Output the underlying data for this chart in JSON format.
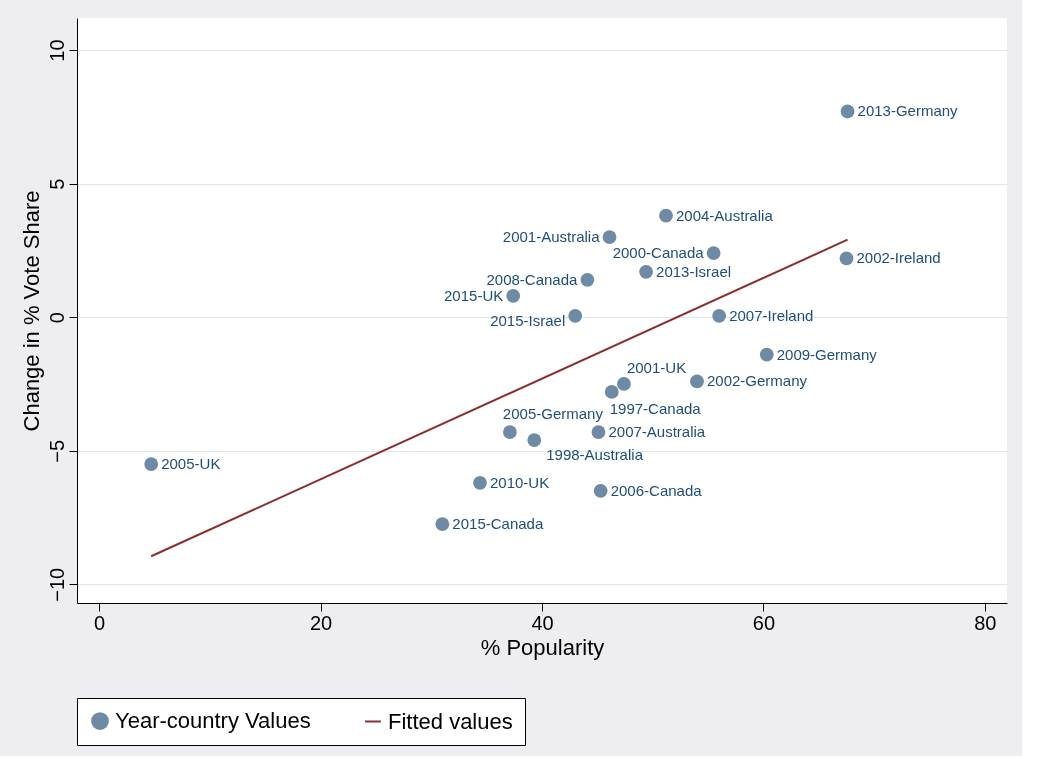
{
  "chart_data": {
    "type": "scatter",
    "xlabel": "% Popularity",
    "ylabel": "Change in % Vote Share",
    "xlim": [
      -2,
      82
    ],
    "ylim": [
      -10.7,
      11.2
    ],
    "xticks": [
      0,
      20,
      40,
      60,
      80
    ],
    "yticks": [
      -10,
      -5,
      0,
      5,
      10
    ],
    "grid": "y",
    "legend": "bottom",
    "series": [
      {
        "name": "Year-country Values",
        "color": "#6e8aa4",
        "marker": "circle",
        "x": [
          67.6,
          51.2,
          46.1,
          55.5,
          67.5,
          49.4,
          44.1,
          37.4,
          43.0,
          56.0,
          60.3,
          47.4,
          54.0,
          46.3,
          37.1,
          39.3,
          45.1,
          4.7,
          34.4,
          45.3,
          31.0
        ],
        "values": [
          7.7,
          3.8,
          3.0,
          2.4,
          2.2,
          1.7,
          1.4,
          0.8,
          0.05,
          0.05,
          -1.4,
          -2.5,
          -2.4,
          -2.8,
          -4.3,
          -4.6,
          -4.3,
          -5.5,
          -6.2,
          -6.5,
          -7.75
        ]
      },
      {
        "name": "Fitted values",
        "type": "line",
        "color": "#8b2e30",
        "line_style": "solid",
        "x": [
          4.7,
          67.6
        ],
        "values": [
          -8.95,
          2.9
        ]
      }
    ],
    "annotations": [
      {
        "text": "2013-Germany",
        "x": 67.6,
        "y": 7.7
      },
      {
        "text": "2004-Australia",
        "x": 51.2,
        "y": 3.8
      },
      {
        "text": "2001-Australia",
        "x": 46.1,
        "y": 3.0
      },
      {
        "text": "2000-Canada",
        "x": 55.5,
        "y": 2.4
      },
      {
        "text": "2002-Ireland",
        "x": 67.5,
        "y": 2.2
      },
      {
        "text": "2013-Israel",
        "x": 49.4,
        "y": 1.7
      },
      {
        "text": "2008-Canada",
        "x": 44.1,
        "y": 1.4
      },
      {
        "text": "2015-UK",
        "x": 37.4,
        "y": 0.8
      },
      {
        "text": "2015-Israel",
        "x": 43.0,
        "y": 0.05
      },
      {
        "text": "2007-Ireland",
        "x": 56.0,
        "y": 0.05
      },
      {
        "text": "2009-Germany",
        "x": 60.3,
        "y": -1.4
      },
      {
        "text": "2001-UK",
        "x": 47.4,
        "y": -2.5
      },
      {
        "text": "2002-Germany",
        "x": 54.0,
        "y": -2.4
      },
      {
        "text": "1997-Canada",
        "x": 46.3,
        "y": -2.8
      },
      {
        "text": "2005-Germany",
        "x": 37.1,
        "y": -4.3
      },
      {
        "text": "1998-Australia",
        "x": 39.3,
        "y": -4.6
      },
      {
        "text": "2007-Australia",
        "x": 45.1,
        "y": -4.3
      },
      {
        "text": "2005-UK",
        "x": 4.7,
        "y": -5.5
      },
      {
        "text": "2010-UK",
        "x": 34.4,
        "y": -6.2
      },
      {
        "text": "2006-Canada",
        "x": 45.3,
        "y": -6.5
      },
      {
        "text": "2015-Canada",
        "x": 31.0,
        "y": -7.75
      }
    ]
  }
}
